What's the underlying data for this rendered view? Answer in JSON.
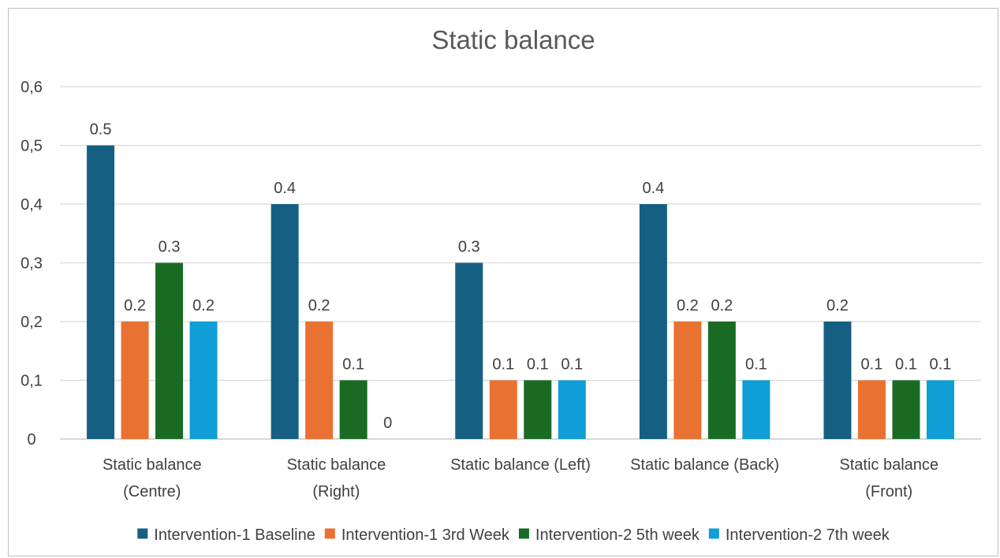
{
  "chart_data": {
    "type": "bar",
    "title": "Static balance",
    "xlabel": "",
    "ylabel": "",
    "categories": [
      [
        "Static balance",
        "(Centre)"
      ],
      [
        "Static balance",
        "(Right)"
      ],
      [
        "Static balance (Left)"
      ],
      [
        "Static balance (Back)"
      ],
      [
        "Static balance",
        "(Front)"
      ]
    ],
    "series": [
      {
        "name": "Intervention-1 Baseline",
        "color": "#156082",
        "values": [
          0.5,
          0.4,
          0.3,
          0.4,
          0.2
        ],
        "labels": [
          "0.5",
          "0.4",
          "0.3",
          "0.4",
          "0.2"
        ]
      },
      {
        "name": "Intervention-1 3rd Week",
        "color": "#E97132",
        "values": [
          0.2,
          0.2,
          0.1,
          0.2,
          0.1
        ],
        "labels": [
          "0.2",
          "0.2",
          "0.1",
          "0.2",
          "0.1"
        ]
      },
      {
        "name": "Intervention-2 5th week",
        "color": "#196B24",
        "values": [
          0.3,
          0.1,
          0.1,
          0.2,
          0.1
        ],
        "labels": [
          "0.3",
          "0.1",
          "0.1",
          "0.2",
          "0.1"
        ]
      },
      {
        "name": "Intervention-2 7th week",
        "color": "#0F9ED5",
        "values": [
          0.2,
          0,
          0.1,
          0.1,
          0.1
        ],
        "labels": [
          "0.2",
          "0",
          "0.1",
          "0.1",
          "0.1"
        ]
      }
    ],
    "ylim": [
      0,
      0.6
    ],
    "yticks": [
      0,
      0.1,
      0.2,
      0.3,
      0.4,
      0.5,
      0.6
    ],
    "ytick_labels": [
      "0",
      "0,1",
      "0,2",
      "0,3",
      "0,4",
      "0,5",
      "0,6"
    ],
    "grid": true,
    "legend_position": "bottom",
    "gridline_color": "#d9d9d9"
  }
}
